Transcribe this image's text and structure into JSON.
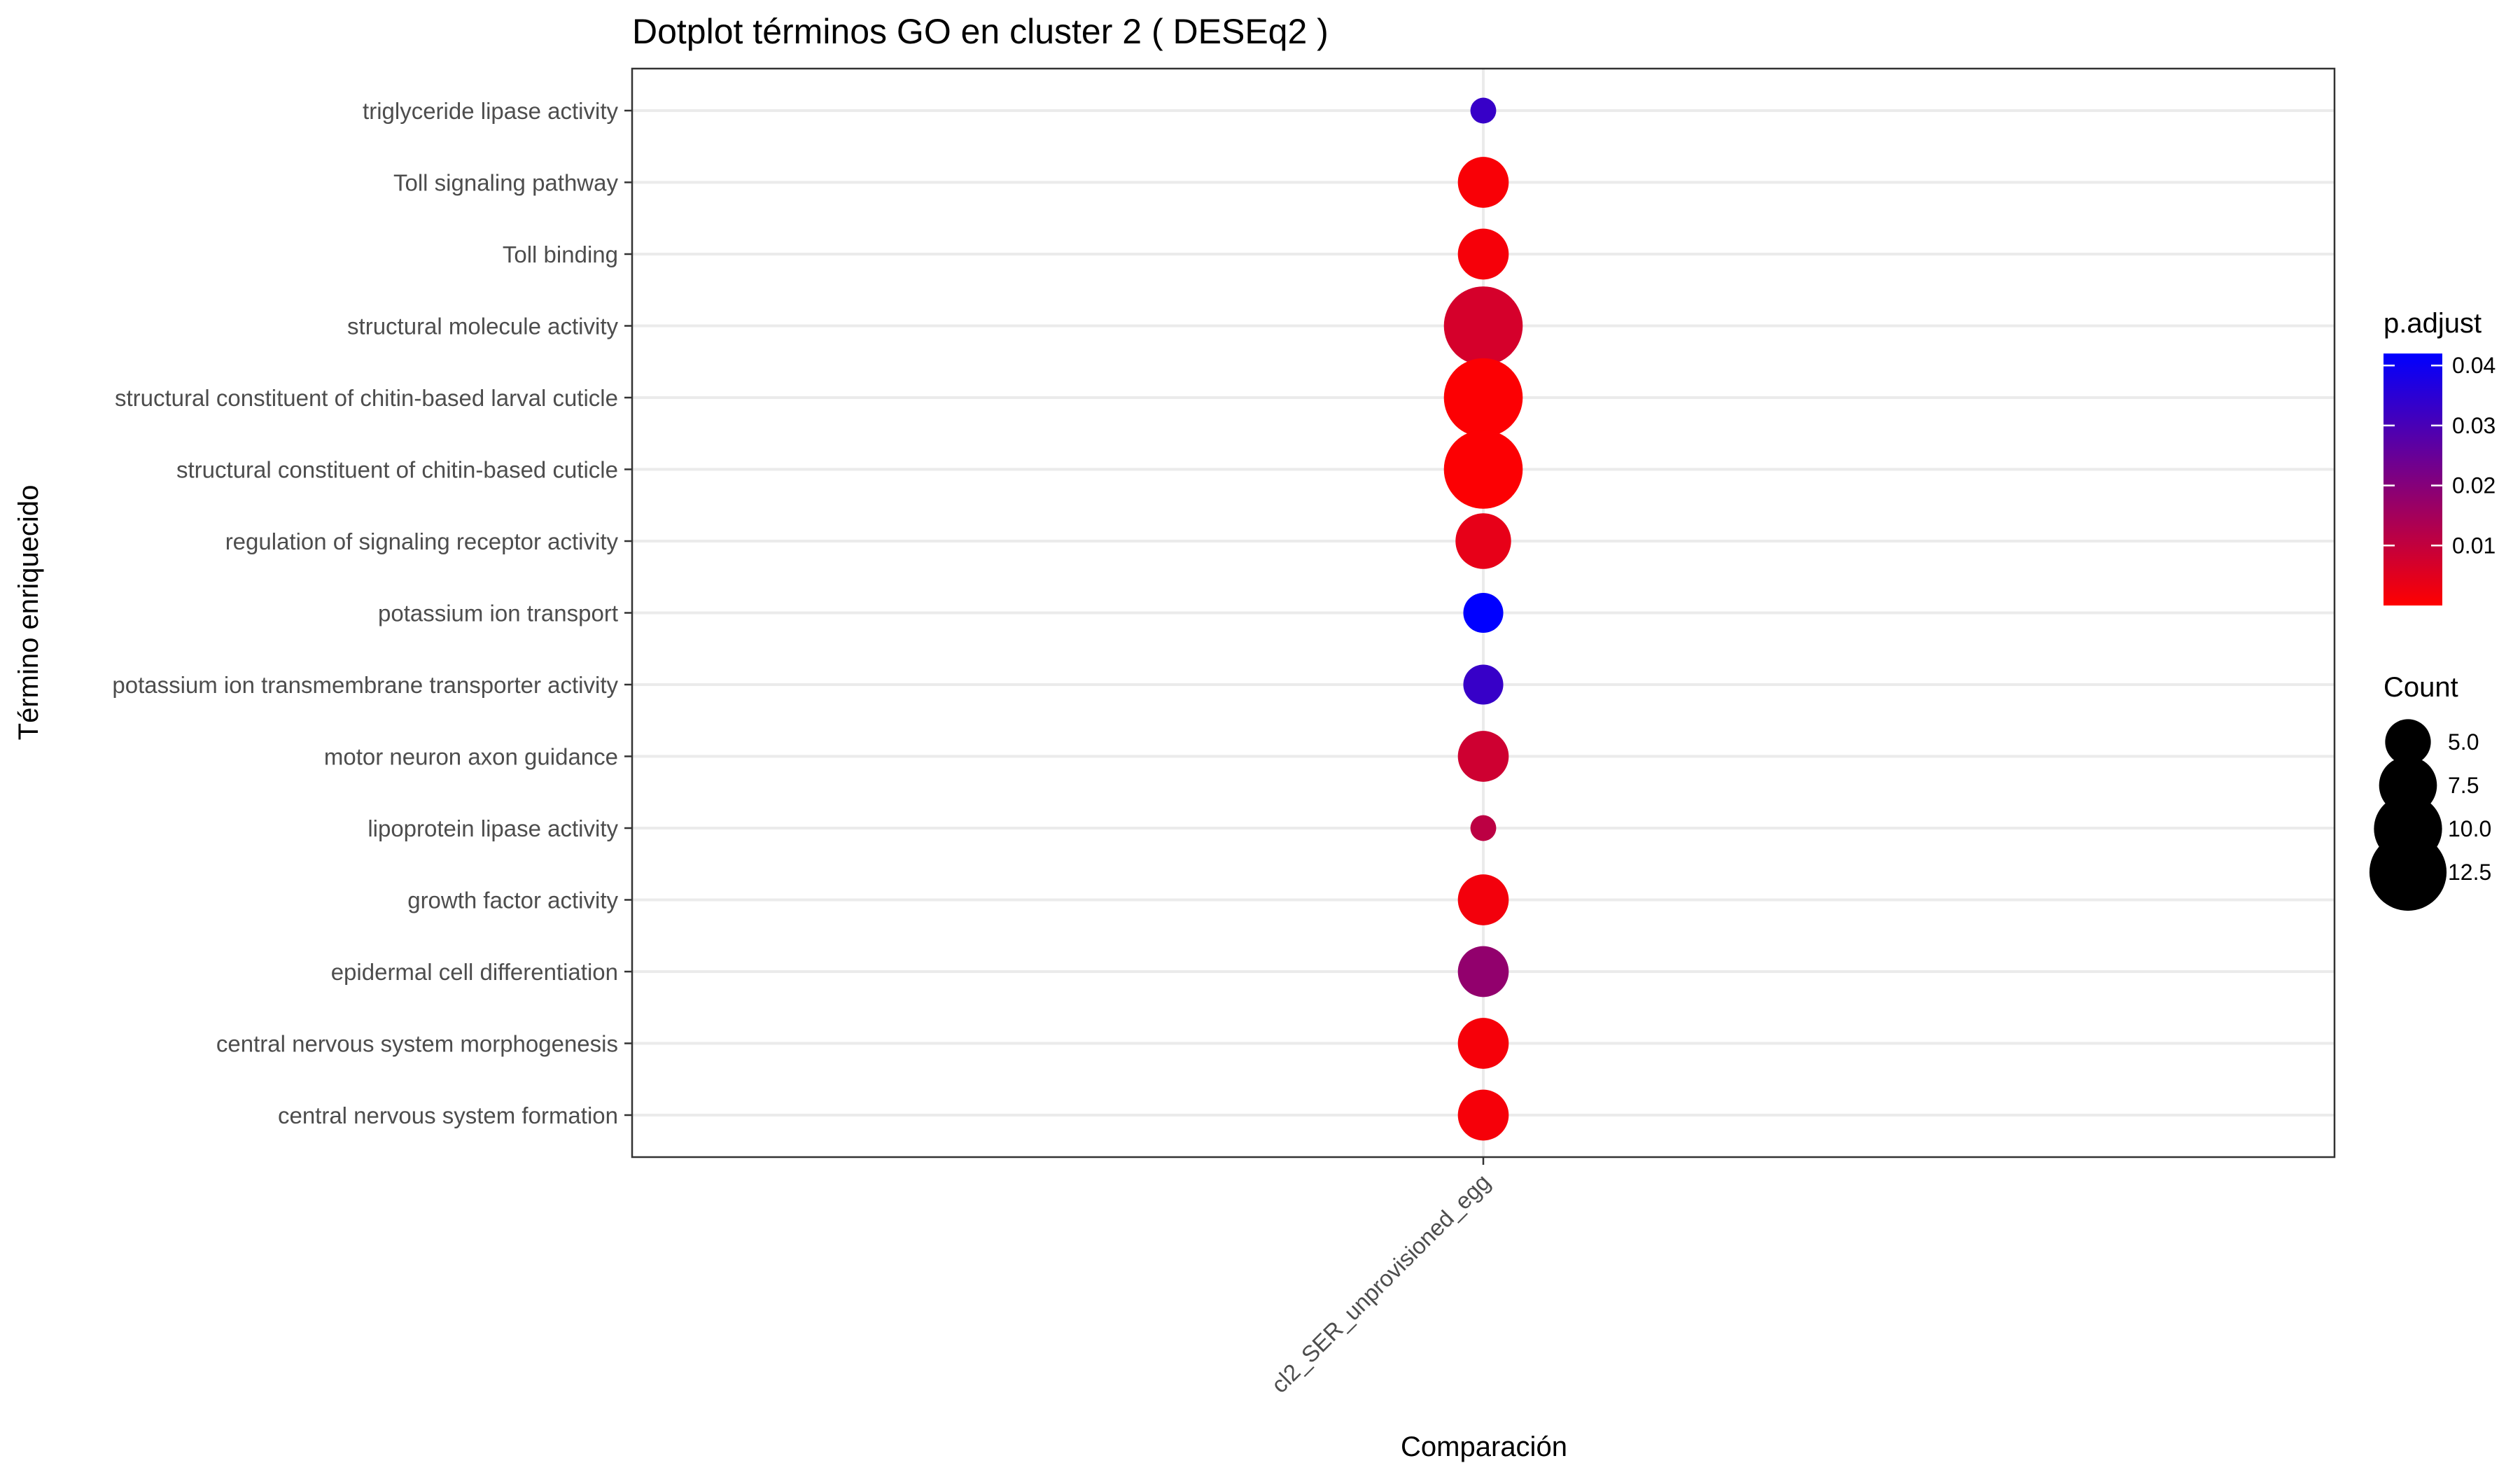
{
  "chart_data": {
    "type": "scatter",
    "title": "Dotplot términos  GO  en cluster 2  ( DESEq2 )",
    "xlabel": "Comparación",
    "ylabel": "Término enriquecido",
    "x_categories": [
      "cl2_SER_unprovisioned_egg"
    ],
    "y_categories": [
      "triglyceride lipase activity",
      "Toll signaling pathway",
      "Toll binding",
      "structural molecule activity",
      "structural constituent of chitin-based larval cuticle",
      "structural constituent of chitin-based cuticle",
      "regulation of signaling receptor activity",
      "potassium ion transport",
      "potassium ion transmembrane transporter activity",
      "motor neuron axon guidance",
      "lipoprotein lipase activity",
      "growth factor activity",
      "epidermal cell differentiation",
      "central nervous system morphogenesis",
      "central nervous system formation"
    ],
    "points": [
      {
        "x": "cl2_SER_unprovisioned_egg",
        "term": "triglyceride lipase activity",
        "count": 2,
        "p_adjust": 0.033
      },
      {
        "x": "cl2_SER_unprovisioned_egg",
        "term": "Toll signaling pathway",
        "count": 6,
        "p_adjust": 0.001
      },
      {
        "x": "cl2_SER_unprovisioned_egg",
        "term": "Toll binding",
        "count": 6,
        "p_adjust": 0.0015
      },
      {
        "x": "cl2_SER_unprovisioned_egg",
        "term": "structural molecule activity",
        "count": 13,
        "p_adjust": 0.007
      },
      {
        "x": "cl2_SER_unprovisioned_egg",
        "term": "structural constituent of chitin-based larval cuticle",
        "count": 13,
        "p_adjust": 0.0005
      },
      {
        "x": "cl2_SER_unprovisioned_egg",
        "term": "structural constituent of chitin-based cuticle",
        "count": 13,
        "p_adjust": 0.0005
      },
      {
        "x": "cl2_SER_unprovisioned_egg",
        "term": "regulation of signaling receptor activity",
        "count": 7,
        "p_adjust": 0.004
      },
      {
        "x": "cl2_SER_unprovisioned_egg",
        "term": "potassium ion transport",
        "count": 4,
        "p_adjust": 0.042
      },
      {
        "x": "cl2_SER_unprovisioned_egg",
        "term": "potassium ion transmembrane transporter activity",
        "count": 4,
        "p_adjust": 0.033
      },
      {
        "x": "cl2_SER_unprovisioned_egg",
        "term": "motor neuron axon guidance",
        "count": 6,
        "p_adjust": 0.008
      },
      {
        "x": "cl2_SER_unprovisioned_egg",
        "term": "lipoprotein lipase activity",
        "count": 2,
        "p_adjust": 0.011
      },
      {
        "x": "cl2_SER_unprovisioned_egg",
        "term": "growth factor activity",
        "count": 6,
        "p_adjust": 0.002
      },
      {
        "x": "cl2_SER_unprovisioned_egg",
        "term": "epidermal cell differentiation",
        "count": 6,
        "p_adjust": 0.018
      },
      {
        "x": "cl2_SER_unprovisioned_egg",
        "term": "central nervous system morphogenesis",
        "count": 6,
        "p_adjust": 0.0015
      },
      {
        "x": "cl2_SER_unprovisioned_egg",
        "term": "central nervous system formation",
        "count": 6,
        "p_adjust": 0.0015
      }
    ],
    "color_legend": {
      "title": "p.adjust",
      "range": [
        0,
        0.042
      ],
      "low_color": "#ff0000",
      "high_color": "#0000ff",
      "ticks": [
        0.01,
        0.02,
        0.03,
        0.04
      ],
      "tick_labels": [
        "0.01",
        "0.02",
        "0.03",
        "0.04"
      ]
    },
    "size_legend": {
      "title": "Count",
      "values": [
        5.0,
        7.5,
        10.0,
        12.5
      ],
      "labels": [
        "5.0",
        "7.5",
        "10.0",
        "12.5"
      ]
    },
    "grid": true,
    "legend_position": "right",
    "point_colors": {
      "legend_dot": "#000000"
    }
  }
}
